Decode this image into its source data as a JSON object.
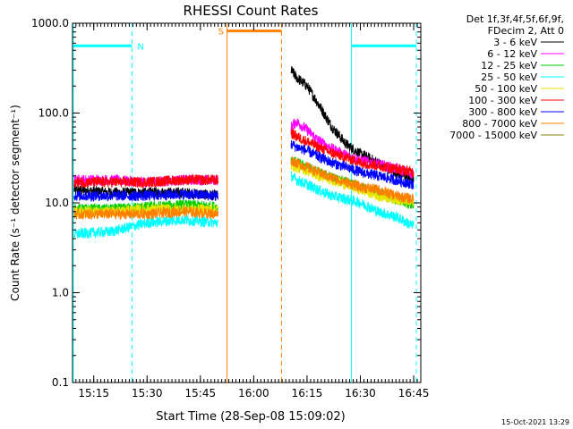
{
  "chart_data": {
    "type": "line",
    "title": "RHESSI Count Rates",
    "xlabel": "Start Time (28-Sep-08 15:09:02)",
    "ylabel": "Count Rate (s⁻¹ detector segment⁻¹)",
    "x_unit": "time of day (HH:MM), 28-Sep-08",
    "xlim": [
      "15:09:02",
      "16:47:00"
    ],
    "ylim": [
      0.1,
      1000
    ],
    "y_scale": "log",
    "x_ticks": [
      "15:15",
      "15:30",
      "15:45",
      "16:00",
      "16:15",
      "16:30",
      "16:45"
    ],
    "y_ticks": [
      "0.1",
      "1.0",
      "10.0",
      "100.0",
      "1000.0"
    ],
    "legend_header": [
      "Det 1f,3f,4f,5f,6f,9f,",
      "FDecim 2, Att 0"
    ],
    "legend_position": "top-right, outside plot",
    "series": [
      {
        "name": "3 - 6 keV",
        "color": "#000000",
        "segments": [
          {
            "x": [
              "15:09:30",
              "15:20:00",
              "15:30:00",
              "15:40:00",
              "15:50:00"
            ],
            "y": [
              14,
              13,
              13,
              13,
              12
            ]
          },
          {
            "x": [
              "16:10:30",
              "16:12:00",
              "16:15:00",
              "16:18:00",
              "16:22:00",
              "16:26:00",
              "16:30:00",
              "16:35:00",
              "16:40:00",
              "16:45:00"
            ],
            "y": [
              300,
              250,
              200,
              130,
              70,
              45,
              35,
              28,
              22,
              18
            ]
          }
        ]
      },
      {
        "name": "6 - 12 keV",
        "color": "#ff00ff",
        "segments": [
          {
            "x": [
              "15:09:30",
              "15:20:00",
              "15:30:00",
              "15:40:00",
              "15:50:00"
            ],
            "y": [
              18,
              18,
              17,
              18,
              18
            ]
          },
          {
            "x": [
              "16:10:30",
              "16:12:00",
              "16:15:00",
              "16:18:00",
              "16:22:00",
              "16:26:00",
              "16:30:00",
              "16:35:00",
              "16:40:00",
              "16:45:00"
            ],
            "y": [
              70,
              80,
              65,
              50,
              40,
              34,
              30,
              27,
              24,
              21
            ]
          }
        ]
      },
      {
        "name": "12 - 25 keV",
        "color": "#00cc00",
        "segments": [
          {
            "x": [
              "15:09:30",
              "15:20:00",
              "15:30:00",
              "15:40:00",
              "15:50:00"
            ],
            "y": [
              8.5,
              8.5,
              9,
              9.5,
              9
            ]
          },
          {
            "x": [
              "16:10:30",
              "16:12:00",
              "16:15:00",
              "16:18:00",
              "16:22:00",
              "16:26:00",
              "16:30:00",
              "16:35:00",
              "16:40:00",
              "16:45:00"
            ],
            "y": [
              30,
              28,
              25,
              22,
              19,
              17,
              15,
              13,
              11,
              9.5
            ]
          }
        ]
      },
      {
        "name": "25 - 50 keV",
        "color": "#00ffff",
        "segments": [
          {
            "x": [
              "15:09:30",
              "15:20:00",
              "15:30:00",
              "15:40:00",
              "15:50:00"
            ],
            "y": [
              4.5,
              4.8,
              6,
              6.5,
              6
            ]
          },
          {
            "x": [
              "16:10:30",
              "16:12:00",
              "16:15:00",
              "16:18:00",
              "16:22:00",
              "16:26:00",
              "16:30:00",
              "16:35:00",
              "16:40:00",
              "16:45:00"
            ],
            "y": [
              20,
              18,
              16,
              14,
              12,
              11,
              10,
              8,
              7,
              5.5
            ]
          }
        ]
      },
      {
        "name": "50 - 100 keV",
        "color": "#e6e600",
        "segments": [
          {
            "x": [
              "15:09:30",
              "15:20:00",
              "15:30:00",
              "15:40:00",
              "15:50:00"
            ],
            "y": [
              8,
              8,
              8.5,
              8.5,
              8.5
            ]
          },
          {
            "x": [
              "16:10:30",
              "16:12:00",
              "16:15:00",
              "16:18:00",
              "16:22:00",
              "16:26:00",
              "16:30:00",
              "16:35:00",
              "16:40:00",
              "16:45:00"
            ],
            "y": [
              26,
              25,
              23,
              20,
              18,
              16,
              14,
              12,
              11,
              10
            ]
          }
        ]
      },
      {
        "name": "100 - 300 keV",
        "color": "#ff0000",
        "segments": [
          {
            "x": [
              "15:09:30",
              "15:20:00",
              "15:30:00",
              "15:40:00",
              "15:50:00"
            ],
            "y": [
              17,
              17,
              17,
              18,
              18
            ]
          },
          {
            "x": [
              "16:10:30",
              "16:12:00",
              "16:15:00",
              "16:18:00",
              "16:22:00",
              "16:26:00",
              "16:30:00",
              "16:35:00",
              "16:40:00",
              "16:45:00"
            ],
            "y": [
              60,
              55,
              48,
              42,
              36,
              32,
              28,
              26,
              24,
              22
            ]
          }
        ]
      },
      {
        "name": "300 - 800 keV",
        "color": "#0000ff",
        "segments": [
          {
            "x": [
              "15:09:30",
              "15:20:00",
              "15:30:00",
              "15:40:00",
              "15:50:00"
            ],
            "y": [
              12,
              12,
              12,
              12.5,
              12
            ]
          },
          {
            "x": [
              "16:10:30",
              "16:12:00",
              "16:15:00",
              "16:18:00",
              "16:22:00",
              "16:26:00",
              "16:30:00",
              "16:35:00",
              "16:40:00",
              "16:45:00"
            ],
            "y": [
              45,
              42,
              38,
              33,
              28,
              25,
              22,
              20,
              18,
              16
            ]
          }
        ]
      },
      {
        "name": "800 - 7000 keV",
        "color": "#ff8000",
        "segments": [
          {
            "x": [
              "15:09:30",
              "15:20:00",
              "15:30:00",
              "15:40:00",
              "15:50:00"
            ],
            "y": [
              7.5,
              7.5,
              7.5,
              8,
              7.5
            ]
          },
          {
            "x": [
              "16:10:30",
              "16:12:00",
              "16:15:00",
              "16:18:00",
              "16:22:00",
              "16:26:00",
              "16:30:00",
              "16:35:00",
              "16:40:00",
              "16:45:00"
            ],
            "y": [
              30,
              28,
              25,
              22,
              19,
              17,
              15,
              14,
              12,
              11
            ]
          }
        ]
      },
      {
        "name": "7000 - 15000 keV",
        "color": "#808000",
        "segments": []
      }
    ],
    "annotations": [
      {
        "label": "N",
        "color": "#00ffff",
        "x_start": "15:09:15",
        "x_end": "15:25:45",
        "y": 560
      },
      {
        "label": "",
        "color": "#00ffff",
        "x_start": "16:27:30",
        "x_end": "16:45:45",
        "y": 560
      },
      {
        "label": "S",
        "color": "#ff8000",
        "x_start": "15:52:30",
        "x_end": "16:07:50",
        "y": 820
      }
    ],
    "night_intervals": [
      {
        "label": "N",
        "color": "#00ffff",
        "start": "15:09:15",
        "end": "15:25:45"
      },
      {
        "label": "",
        "color": "#00ffff",
        "start": "16:27:30",
        "end": "16:45:45"
      }
    ],
    "saa_interval": {
      "label": "S",
      "color": "#ff8000",
      "start": "15:52:30",
      "end": "16:07:50"
    }
  },
  "timestamp": "15-Oct-2021 13:29"
}
